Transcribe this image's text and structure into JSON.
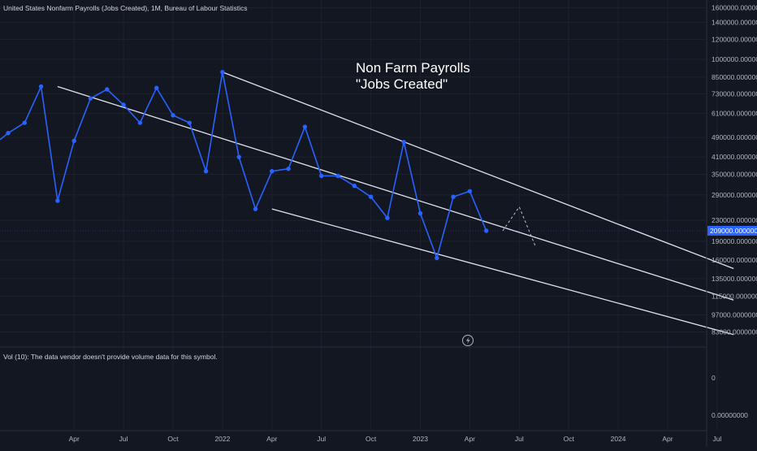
{
  "header": {
    "symbol_title": "United States Nonfarm Payrolls (Jobs Created), 1M, Bureau of Labour Statistics"
  },
  "annotation": {
    "line1": "Non Farm Payrolls",
    "line2": "\"Jobs Created\""
  },
  "volume_pane": {
    "message": "Vol (10): The data vendor doesn't provide volume data for this symbol.",
    "scale_labels": [
      "0",
      "0.00000000"
    ]
  },
  "price_scale": {
    "labels": [
      "1600000.00000000",
      "1400000.00000000",
      "1200000.00000000",
      "1000000.00000000",
      "850000.00000000",
      "730000.00000000",
      "610000.00000000",
      "490000.00000000",
      "410000.00000000",
      "350000.00000000",
      "290000.00000000",
      "230000.00000000",
      "190000.00000000",
      "160000.00000000",
      "135000.00000000",
      "115000.00000000",
      "97000.00000000",
      "83000.00000000"
    ],
    "last_value_label": "209000.00000000",
    "last_value_color": "#2962ff"
  },
  "time_axis": {
    "labels": [
      "Apr",
      "Jul",
      "Oct",
      "2022",
      "Apr",
      "Jul",
      "Oct",
      "2023",
      "Apr",
      "Jul",
      "Oct",
      "2024",
      "Apr",
      "Jul"
    ]
  },
  "flash_icon": "lightning-icon",
  "colors": {
    "background": "#131722",
    "series": "#2962ff",
    "trendline": "#e0e3eb",
    "text": "#b2b5be"
  },
  "chart_data": {
    "type": "line",
    "title": "United States Nonfarm Payrolls (Jobs Created), 1M, Bureau of Labour Statistics",
    "scale": "log",
    "ylim": [
      76000,
      1600000
    ],
    "series": [
      {
        "x": [
          "2020-12",
          "2021-01",
          "2021-02",
          "2021-03",
          "2021-04",
          "2021-05",
          "2021-06",
          "2021-07",
          "2021-08",
          "2021-09",
          "2021-10",
          "2021-11",
          "2021-12",
          "2022-01",
          "2022-02",
          "2022-03",
          "2022-04",
          "2022-05",
          "2022-06",
          "2022-07",
          "2022-08",
          "2022-09",
          "2022-10",
          "2022-11",
          "2022-12",
          "2023-01",
          "2023-02",
          "2023-03",
          "2023-04",
          "2023-05",
          "2023-06"
        ],
        "values": [
          510000,
          560000,
          780000,
          275000,
          475000,
          700000,
          760000,
          660000,
          560000,
          770000,
          600000,
          560000,
          360000,
          890000,
          410000,
          255000,
          360000,
          368000,
          540000,
          345000,
          345000,
          315000,
          285000,
          235000,
          470000,
          245000,
          163000,
          285000,
          300000,
          209000,
          null
        ]
      }
    ],
    "trendlines": [
      {
        "name": "upper",
        "from": [
          "2022-01",
          890000
        ],
        "to": [
          "2024-08",
          148000
        ]
      },
      {
        "name": "middle",
        "from": [
          "2021-03",
          780000
        ],
        "to": [
          "2024-08",
          111000
        ]
      },
      {
        "name": "lower",
        "from": [
          "2022-04",
          255000
        ],
        "to": [
          "2024-08",
          81000
        ]
      }
    ],
    "projection": {
      "from": [
        "2023-06",
        209000
      ],
      "peak": [
        "2023-07",
        260000
      ],
      "to": [
        "2023-08",
        180000
      ]
    },
    "legend": "none",
    "grid": true
  }
}
